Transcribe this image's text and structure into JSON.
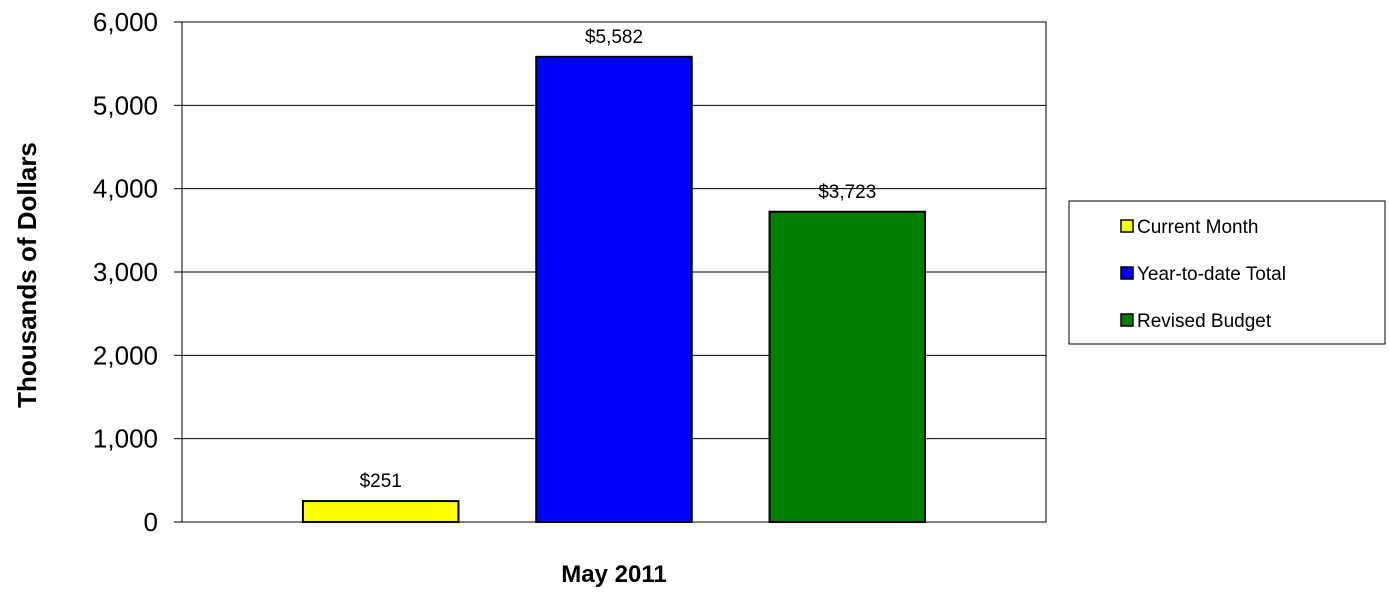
{
  "chart_data": {
    "type": "bar",
    "title": "",
    "xlabel": "May 2011",
    "ylabel": "Thousands of Dollars",
    "ylim": [
      0,
      6000
    ],
    "yticks": [
      0,
      1000,
      2000,
      3000,
      4000,
      5000,
      6000
    ],
    "ytick_labels": [
      "0",
      "1,000",
      "2,000",
      "3,000",
      "4,000",
      "5,000",
      "6,000"
    ],
    "grid": true,
    "legend_position": "right",
    "categories": [
      "May 2011"
    ],
    "series": [
      {
        "name": "Current Month",
        "values": [
          251
        ],
        "label": "$251",
        "color": "#ffff00"
      },
      {
        "name": "Year-to-date Total",
        "values": [
          5582
        ],
        "label": "$5,582",
        "color": "#0000ff"
      },
      {
        "name": "Revised Budget",
        "values": [
          3723
        ],
        "label": "$3,723",
        "color": "#008000"
      }
    ]
  }
}
